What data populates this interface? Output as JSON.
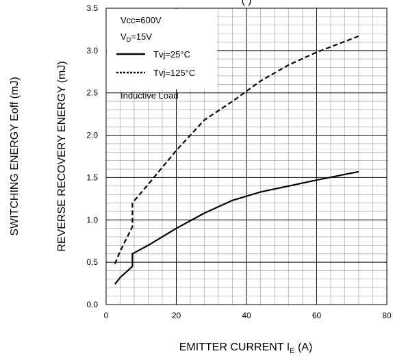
{
  "chart_data": {
    "type": "line",
    "title_partial": "(         )",
    "xlabel": "EMITTER CURRENT I",
    "xlabel_sub": "E",
    "xlabel_unit": " (A)",
    "ylabel_outer": "SWITCHING ENERGY Eoff (mJ)",
    "ylabel_inner": "REVERSE RECOVERY ENERGY (mJ)",
    "xlim": [
      0,
      80
    ],
    "ylim": [
      0,
      3.5
    ],
    "x_ticks": [
      "0",
      "20",
      "40",
      "60",
      "80"
    ],
    "y_ticks": [
      "0.0",
      "0.5",
      "1.0",
      "1.5",
      "2.0",
      "2.5",
      "3.0",
      "3.5"
    ],
    "grid": true,
    "legend": {
      "vcc": "Vcc=600V",
      "vd_main": "V",
      "vd_sub": "D",
      "vd_rest": "=15V",
      "load": "Inductive Load",
      "placement": "top-left"
    },
    "series": [
      {
        "name": "Tvj=25°C",
        "style": "solid",
        "points": [
          [
            2.5,
            0.24
          ],
          [
            4,
            0.32
          ],
          [
            7.5,
            0.45
          ],
          [
            7.5,
            0.6
          ],
          [
            12,
            0.7
          ],
          [
            20,
            0.9
          ],
          [
            28,
            1.08
          ],
          [
            36,
            1.23
          ],
          [
            44,
            1.33
          ],
          [
            52,
            1.4
          ],
          [
            60,
            1.47
          ],
          [
            72,
            1.57
          ]
        ]
      },
      {
        "name": "Tvj=125°C",
        "style": "dashed",
        "points": [
          [
            2.5,
            0.48
          ],
          [
            4,
            0.63
          ],
          [
            7.5,
            0.92
          ],
          [
            7.5,
            1.2
          ],
          [
            12,
            1.42
          ],
          [
            20,
            1.82
          ],
          [
            28,
            2.18
          ],
          [
            36,
            2.4
          ],
          [
            44,
            2.64
          ],
          [
            52,
            2.83
          ],
          [
            60,
            2.98
          ],
          [
            72,
            3.17
          ]
        ]
      }
    ]
  }
}
